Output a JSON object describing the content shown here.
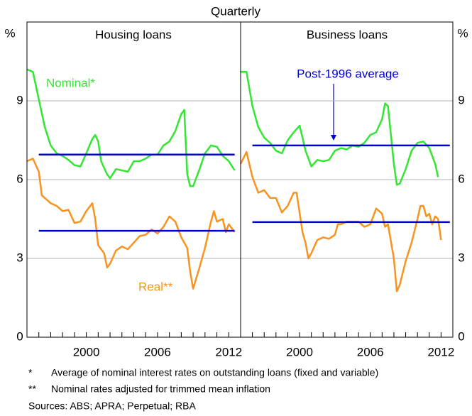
{
  "title": "Quarterly",
  "y_label": "%",
  "chart_data": [
    {
      "type": "line",
      "title": "Housing loans",
      "xlim": [
        1995,
        2013
      ],
      "xticks": [
        2000,
        2006,
        2012
      ],
      "xminorticks": [
        1996,
        1997,
        1998,
        1999,
        2000,
        2001,
        2002,
        2003,
        2004,
        2005,
        2006,
        2007,
        2008,
        2009,
        2010,
        2011,
        2012
      ],
      "ylim": [
        0,
        12
      ],
      "yticks": [
        0,
        3,
        6,
        9
      ],
      "grid": true,
      "y_axis_side": "left",
      "series": [
        {
          "name": "Nominal*",
          "color": "#33e633",
          "x": [
            1995,
            1995.5,
            1996,
            1996.5,
            1997,
            1997.5,
            1998,
            1998.5,
            1999,
            1999.5,
            2000,
            2000.5,
            2000.75,
            2001,
            2001.25,
            2001.75,
            2002,
            2002.5,
            2003,
            2003.5,
            2004,
            2004.5,
            2005,
            2005.5,
            2006,
            2006.5,
            2007,
            2007.5,
            2008,
            2008.25,
            2008.5,
            2008.75,
            2009,
            2009.5,
            2010,
            2010.5,
            2011,
            2011.5,
            2012,
            2012.5
          ],
          "values": [
            10.2,
            10.1,
            9.05,
            8.0,
            7.3,
            7.0,
            6.9,
            6.75,
            6.55,
            6.5,
            7.0,
            7.55,
            7.7,
            7.45,
            6.7,
            6.2,
            6.05,
            6.4,
            6.35,
            6.3,
            6.7,
            6.7,
            6.8,
            6.95,
            6.95,
            7.3,
            7.45,
            7.85,
            8.5,
            8.65,
            6.2,
            5.75,
            5.75,
            6.35,
            7.0,
            7.3,
            7.25,
            6.9,
            6.7,
            6.35
          ]
        },
        {
          "name": "Real**",
          "color": "#f7931e",
          "x": [
            1995,
            1995.5,
            1996,
            1996.25,
            1996.75,
            1997,
            1997.5,
            1998,
            1998.5,
            1999,
            1999.5,
            2000,
            2000.5,
            2000.75,
            2001,
            2001.5,
            2001.75,
            2002,
            2002.5,
            2003,
            2003.5,
            2004,
            2004.5,
            2005,
            2005.5,
            2006,
            2006.5,
            2007,
            2007.5,
            2008,
            2008.5,
            2008.75,
            2009,
            2009.5,
            2010,
            2010.5,
            2010.75,
            2011,
            2011.5,
            2011.75,
            2012,
            2012.5
          ],
          "values": [
            6.7,
            6.8,
            6.3,
            5.4,
            5.2,
            5.1,
            5.0,
            4.8,
            4.85,
            4.35,
            4.4,
            4.8,
            5.1,
            4.5,
            3.5,
            3.2,
            2.65,
            2.8,
            3.3,
            3.45,
            3.35,
            3.6,
            3.85,
            3.9,
            4.1,
            3.95,
            4.2,
            4.6,
            4.4,
            3.8,
            3.4,
            2.5,
            1.85,
            2.6,
            3.4,
            4.4,
            4.8,
            4.4,
            4.5,
            4.0,
            4.3,
            4.0
          ]
        },
        {
          "color": "#0000cc",
          "x": [
            1996,
            2012.5
          ],
          "values": [
            6.95,
            6.95
          ]
        },
        {
          "color": "#0000cc",
          "x": [
            1996,
            2012.5
          ],
          "values": [
            4.05,
            4.05
          ]
        }
      ]
    },
    {
      "type": "line",
      "title": "Business loans",
      "xlim": [
        1995,
        2013
      ],
      "xticks": [
        2000,
        2006,
        2012
      ],
      "xminorticks": [
        1996,
        1997,
        1998,
        1999,
        2000,
        2001,
        2002,
        2003,
        2004,
        2005,
        2006,
        2007,
        2008,
        2009,
        2010,
        2011,
        2012
      ],
      "ylim": [
        0,
        12
      ],
      "yticks": [
        0,
        3,
        6,
        9
      ],
      "grid": true,
      "y_axis_side": "right",
      "annotation": "Post-1996 average",
      "series": [
        {
          "color": "#33e633",
          "x": [
            1995,
            1995.5,
            1996,
            1996.5,
            1997,
            1997.5,
            1998,
            1998.5,
            1999,
            1999.5,
            2000,
            2000.25,
            2000.5,
            2001,
            2001.5,
            2002,
            2002.5,
            2003,
            2003.5,
            2004,
            2004.5,
            2005,
            2005.5,
            2006,
            2006.5,
            2007,
            2007.25,
            2007.5,
            2008,
            2008.25,
            2008.5,
            2009,
            2009.5,
            2010,
            2010.5,
            2011,
            2011.5,
            2011.75
          ],
          "values": [
            10.1,
            10.1,
            8.8,
            8.0,
            7.6,
            7.4,
            7.1,
            7.0,
            7.5,
            7.8,
            8.05,
            7.6,
            7.1,
            6.5,
            6.75,
            6.7,
            6.75,
            7.1,
            7.2,
            7.15,
            7.3,
            7.25,
            7.4,
            7.7,
            7.8,
            8.3,
            8.9,
            8.8,
            6.6,
            5.8,
            5.85,
            6.4,
            7.1,
            7.4,
            7.45,
            7.2,
            6.6,
            6.1
          ]
        },
        {
          "color": "#f7931e",
          "x": [
            1995,
            1995.5,
            1996,
            1996.5,
            1997,
            1997.5,
            1998,
            1998.5,
            1999,
            1999.5,
            1999.75,
            2000.25,
            2000.5,
            2000.75,
            2001,
            2001.5,
            2002,
            2002.5,
            2003,
            2003.25,
            2003.5,
            2004,
            2004.5,
            2005,
            2005.5,
            2006,
            2006.5,
            2007,
            2007.25,
            2007.5,
            2008,
            2008.25,
            2008.5,
            2009,
            2009.5,
            2010,
            2010.25,
            2010.5,
            2010.75,
            2011,
            2011.25,
            2011.5,
            2011.75,
            2012
          ],
          "values": [
            6.6,
            7.05,
            6.1,
            5.5,
            5.6,
            5.3,
            5.3,
            4.75,
            5.0,
            5.5,
            5.5,
            4.0,
            3.6,
            3.0,
            3.2,
            3.7,
            3.8,
            3.75,
            3.9,
            4.3,
            4.3,
            4.4,
            4.4,
            4.4,
            4.2,
            4.3,
            4.9,
            4.7,
            4.2,
            4.3,
            3.0,
            1.75,
            2.0,
            2.9,
            3.6,
            4.5,
            5.0,
            5.0,
            4.6,
            4.7,
            4.3,
            4.6,
            4.5,
            3.7
          ]
        },
        {
          "color": "#0000cc",
          "x": [
            1996,
            2012.75
          ],
          "values": [
            7.3,
            7.3
          ]
        },
        {
          "color": "#0000cc",
          "x": [
            1996,
            2012.75
          ],
          "values": [
            4.38,
            4.38
          ]
        }
      ]
    }
  ],
  "notes": [
    {
      "marker": "*",
      "text": "Average of nominal interest rates on outstanding loans (fixed and variable)"
    },
    {
      "marker": "**",
      "text": "Nominal rates adjusted for trimmed mean inflation"
    }
  ],
  "sources": "Sources: ABS; APRA; Perpetual; RBA"
}
